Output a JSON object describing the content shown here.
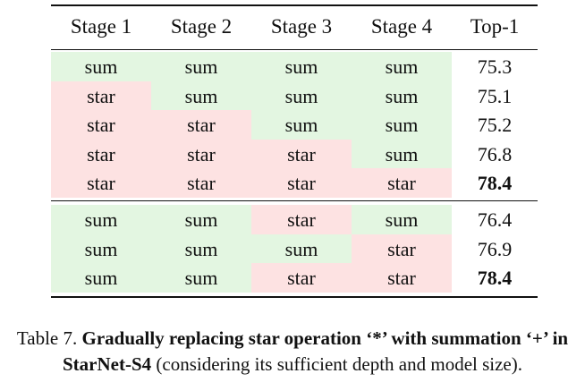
{
  "table": {
    "header": [
      "Stage 1",
      "Stage 2",
      "Stage 3",
      "Stage 4",
      "Top-1"
    ],
    "groups": [
      [
        {
          "cells": [
            "sum",
            "sum",
            "sum",
            "sum"
          ],
          "top1": 75.3,
          "bold": false
        },
        {
          "cells": [
            "star",
            "sum",
            "sum",
            "sum"
          ],
          "top1": 75.1,
          "bold": false
        },
        {
          "cells": [
            "star",
            "star",
            "sum",
            "sum"
          ],
          "top1": 75.2,
          "bold": false
        },
        {
          "cells": [
            "star",
            "star",
            "star",
            "sum"
          ],
          "top1": 76.8,
          "bold": false
        },
        {
          "cells": [
            "star",
            "star",
            "star",
            "star"
          ],
          "top1": 78.4,
          "bold": true
        }
      ],
      [
        {
          "cells": [
            "sum",
            "sum",
            "star",
            "sum"
          ],
          "top1": 76.4,
          "bold": false
        },
        {
          "cells": [
            "sum",
            "sum",
            "sum",
            "star"
          ],
          "top1": 76.9,
          "bold": false
        },
        {
          "cells": [
            "sum",
            "sum",
            "star",
            "star"
          ],
          "top1": 78.4,
          "bold": true
        }
      ]
    ]
  },
  "caption": {
    "label": "Table 7.",
    "title": "Gradually replacing star operation ‘*’ with summation ‘+’ in StarNet-S4",
    "text": "(considering its sufficient depth and model size)."
  }
}
